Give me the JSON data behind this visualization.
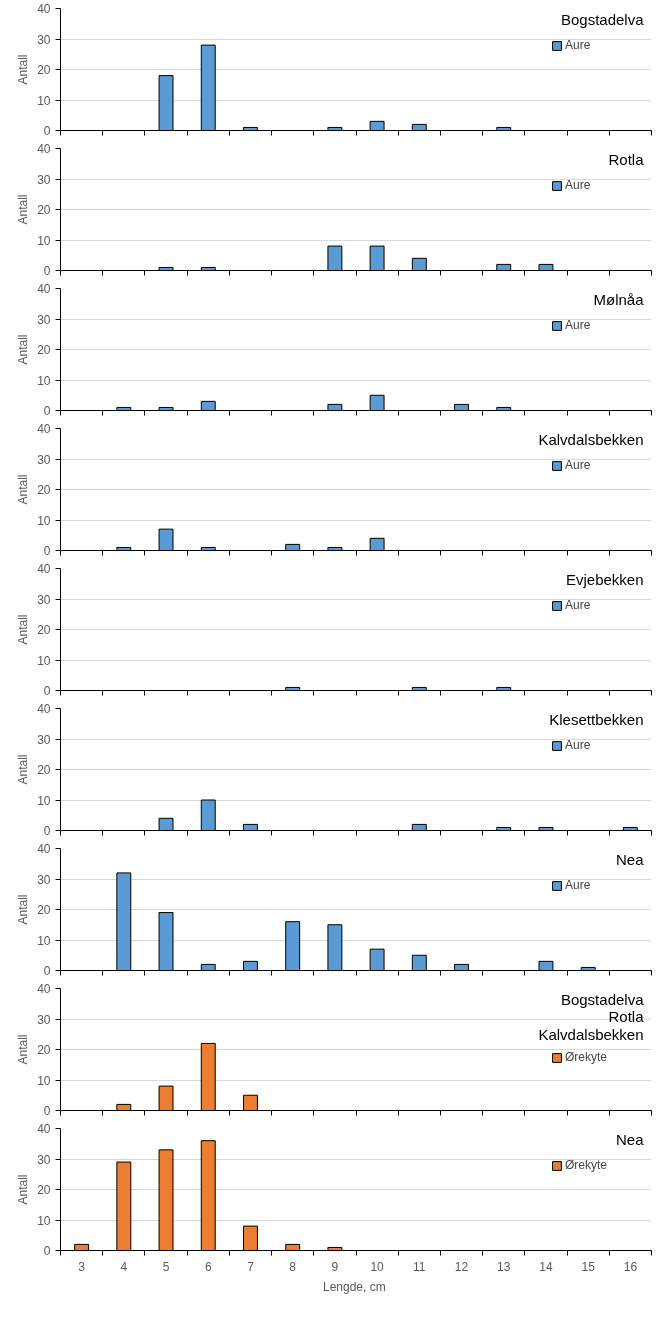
{
  "chart_data": [
    {
      "type": "bar",
      "title": "Bogstadelva",
      "ylabel": "Antall",
      "categories": [
        "3",
        "4",
        "5",
        "6",
        "7",
        "8",
        "9",
        "10",
        "11",
        "12",
        "13",
        "14",
        "15",
        "16"
      ],
      "ylim": [
        0,
        40
      ],
      "yticks": [
        0,
        10,
        20,
        30,
        40
      ],
      "grid": "y",
      "legend": "top right",
      "tick_labels": "y",
      "series": [
        {
          "name": "Aure",
          "color": "#5b9bd5",
          "values": [
            null,
            null,
            18,
            28,
            1,
            null,
            1,
            3,
            2,
            null,
            1,
            null,
            null,
            null
          ]
        }
      ]
    },
    {
      "type": "bar",
      "title": "Rotla",
      "ylabel": "Antall",
      "categories": [
        "3",
        "4",
        "5",
        "6",
        "7",
        "8",
        "9",
        "10",
        "11",
        "12",
        "13",
        "14",
        "15",
        "16"
      ],
      "ylim": [
        0,
        40
      ],
      "yticks": [
        0,
        10,
        20,
        30,
        40
      ],
      "grid": "y",
      "legend": "top right",
      "tick_labels": "y",
      "series": [
        {
          "name": "Aure",
          "color": "#5b9bd5",
          "values": [
            null,
            null,
            1,
            1,
            null,
            null,
            8,
            8,
            4,
            null,
            2,
            2,
            null,
            null
          ]
        }
      ]
    },
    {
      "type": "bar",
      "title": "Mølnåa",
      "ylabel": "Antall",
      "categories": [
        "3",
        "4",
        "5",
        "6",
        "7",
        "8",
        "9",
        "10",
        "11",
        "12",
        "13",
        "14",
        "15",
        "16"
      ],
      "ylim": [
        0,
        40
      ],
      "yticks": [
        0,
        10,
        20,
        30,
        40
      ],
      "grid": "y",
      "legend": "top right",
      "tick_labels": "y",
      "series": [
        {
          "name": "Aure",
          "color": "#5b9bd5",
          "values": [
            null,
            1,
            1,
            3,
            null,
            null,
            2,
            5,
            null,
            2,
            1,
            null,
            null,
            null
          ]
        }
      ]
    },
    {
      "type": "bar",
      "title": "Kalvdalsbekken",
      "ylabel": "Antall",
      "categories": [
        "3",
        "4",
        "5",
        "6",
        "7",
        "8",
        "9",
        "10",
        "11",
        "12",
        "13",
        "14",
        "15",
        "16"
      ],
      "ylim": [
        0,
        40
      ],
      "yticks": [
        0,
        10,
        20,
        30,
        40
      ],
      "grid": "y",
      "legend": "top right",
      "tick_labels": "y",
      "series": [
        {
          "name": "Aure",
          "color": "#5b9bd5",
          "values": [
            null,
            1,
            7,
            1,
            null,
            2,
            1,
            4,
            null,
            null,
            null,
            null,
            null,
            null
          ]
        }
      ]
    },
    {
      "type": "bar",
      "title": "Evjebekken",
      "ylabel": "Antall",
      "categories": [
        "3",
        "4",
        "5",
        "6",
        "7",
        "8",
        "9",
        "10",
        "11",
        "12",
        "13",
        "14",
        "15",
        "16"
      ],
      "ylim": [
        0,
        40
      ],
      "yticks": [
        0,
        10,
        20,
        30,
        40
      ],
      "grid": "y",
      "legend": "top right",
      "tick_labels": "y",
      "series": [
        {
          "name": "Aure",
          "color": "#5b9bd5",
          "values": [
            null,
            null,
            null,
            null,
            null,
            1,
            null,
            null,
            1,
            null,
            1,
            null,
            null,
            null
          ]
        }
      ]
    },
    {
      "type": "bar",
      "title": "Klesettbekken",
      "ylabel": "Antall",
      "categories": [
        "3",
        "4",
        "5",
        "6",
        "7",
        "8",
        "9",
        "10",
        "11",
        "12",
        "13",
        "14",
        "15",
        "16"
      ],
      "ylim": [
        0,
        40
      ],
      "yticks": [
        0,
        10,
        20,
        30,
        40
      ],
      "grid": "y",
      "legend": "top right",
      "tick_labels": "y",
      "series": [
        {
          "name": "Aure",
          "color": "#5b9bd5",
          "values": [
            null,
            null,
            4,
            10,
            2,
            null,
            null,
            null,
            2,
            null,
            1,
            1,
            null,
            1
          ]
        }
      ]
    },
    {
      "type": "bar",
      "title": "Nea",
      "ylabel": "Antall",
      "categories": [
        "3",
        "4",
        "5",
        "6",
        "7",
        "8",
        "9",
        "10",
        "11",
        "12",
        "13",
        "14",
        "15",
        "16"
      ],
      "ylim": [
        0,
        40
      ],
      "yticks": [
        0,
        10,
        20,
        30,
        40
      ],
      "grid": "y",
      "legend": "top right",
      "tick_labels": "y",
      "series": [
        {
          "name": "Aure",
          "color": "#5b9bd5",
          "values": [
            null,
            32,
            19,
            2,
            3,
            16,
            15,
            7,
            5,
            2,
            null,
            3,
            1,
            null
          ]
        }
      ]
    },
    {
      "type": "bar",
      "title": "Bogstadelva\nRotla\nKalvdalsbekken",
      "ylabel": "Antall",
      "categories": [
        "3",
        "4",
        "5",
        "6",
        "7",
        "8",
        "9",
        "10",
        "11",
        "12",
        "13",
        "14",
        "15",
        "16"
      ],
      "ylim": [
        0,
        40
      ],
      "yticks": [
        0,
        10,
        20,
        30,
        40
      ],
      "grid": "y",
      "legend": "right",
      "tick_labels": "y",
      "series": [
        {
          "name": "Ørekyte",
          "color": "#ed7d31",
          "values": [
            null,
            2,
            8,
            22,
            5,
            null,
            null,
            null,
            null,
            null,
            null,
            null,
            null,
            null
          ]
        }
      ]
    },
    {
      "type": "bar",
      "title": "Nea",
      "ylabel": "Antall",
      "xlabel": "Lengde,  cm",
      "categories": [
        "3",
        "4",
        "5",
        "6",
        "7",
        "8",
        "9",
        "10",
        "11",
        "12",
        "13",
        "14",
        "15",
        "16"
      ],
      "ylim": [
        0,
        40
      ],
      "yticks": [
        0,
        10,
        20,
        30,
        40
      ],
      "grid": "y",
      "legend": "top right",
      "series": [
        {
          "name": "Ørekyte",
          "color": "#ed7d31",
          "values": [
            2,
            29,
            33,
            36,
            8,
            2,
            1,
            null,
            null,
            null,
            null,
            null,
            null,
            null
          ]
        }
      ]
    }
  ]
}
